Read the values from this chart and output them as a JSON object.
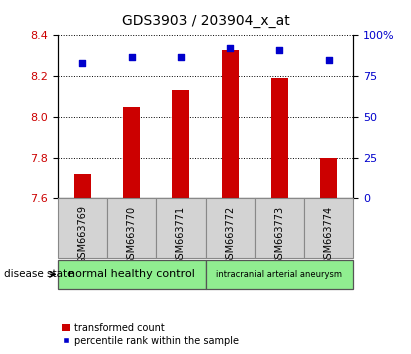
{
  "title": "GDS3903 / 203904_x_at",
  "samples": [
    "GSM663769",
    "GSM663770",
    "GSM663771",
    "GSM663772",
    "GSM663773",
    "GSM663774"
  ],
  "bar_values": [
    7.72,
    8.05,
    8.13,
    8.33,
    8.19,
    7.8
  ],
  "percentile_values": [
    83,
    87,
    87,
    92,
    91,
    85
  ],
  "ylim_left": [
    7.6,
    8.4
  ],
  "ylim_right": [
    0,
    100
  ],
  "yticks_left": [
    7.6,
    7.8,
    8.0,
    8.2,
    8.4
  ],
  "yticks_right": [
    0,
    25,
    50,
    75,
    100
  ],
  "bar_color": "#cc0000",
  "scatter_color": "#0000cc",
  "bar_bottom": 7.6,
  "groups": [
    {
      "label": "normal healthy control",
      "n": 3,
      "fontsize": 8
    },
    {
      "label": "intracranial arterial aneurysm",
      "n": 3,
      "fontsize": 6
    }
  ],
  "disease_state_label": "disease state",
  "legend_bar_label": "transformed count",
  "legend_scatter_label": "percentile rank within the sample",
  "tick_label_color_left": "#cc0000",
  "tick_label_color_right": "#0000cc",
  "title_fontsize": 10,
  "tick_fontsize": 8,
  "sample_fontsize": 7,
  "bar_width": 0.35
}
